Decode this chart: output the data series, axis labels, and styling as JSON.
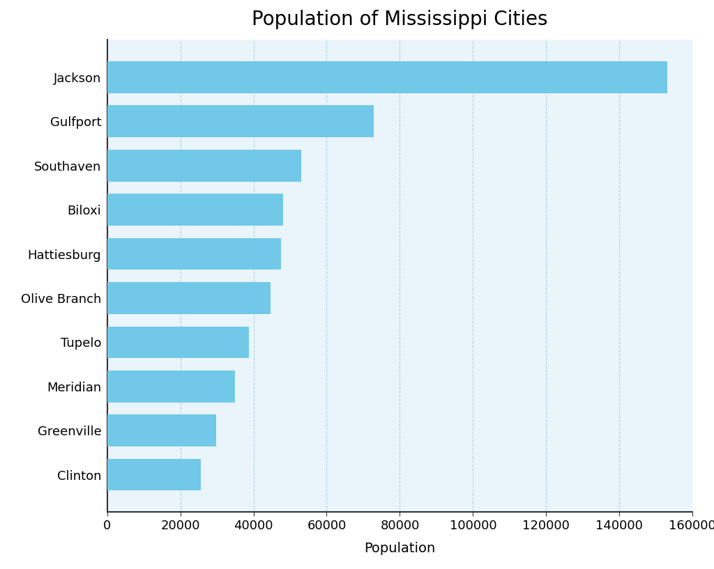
{
  "title": "Population of Mississippi Cities",
  "xlabel": "Population",
  "cities": [
    "Clinton",
    "Greenville",
    "Meridian",
    "Tupelo",
    "Olive Branch",
    "Hattiesburg",
    "Biloxi",
    "Southaven",
    "Gulfport",
    "Jackson"
  ],
  "populations": [
    25700,
    29800,
    35000,
    38800,
    44600,
    47500,
    48100,
    53000,
    72800,
    153000
  ],
  "bar_color": "#72C8E8",
  "plot_bg_color": "#eaf5fb",
  "figure_bg_color": "#ffffff",
  "xlim": [
    0,
    160000
  ],
  "xticks": [
    0,
    20000,
    40000,
    60000,
    80000,
    100000,
    120000,
    140000,
    160000
  ],
  "title_fontsize": 20,
  "label_fontsize": 14,
  "tick_fontsize": 13,
  "grid_color": "#b0cfe0",
  "spine_color": "#333333",
  "bar_height": 0.72
}
